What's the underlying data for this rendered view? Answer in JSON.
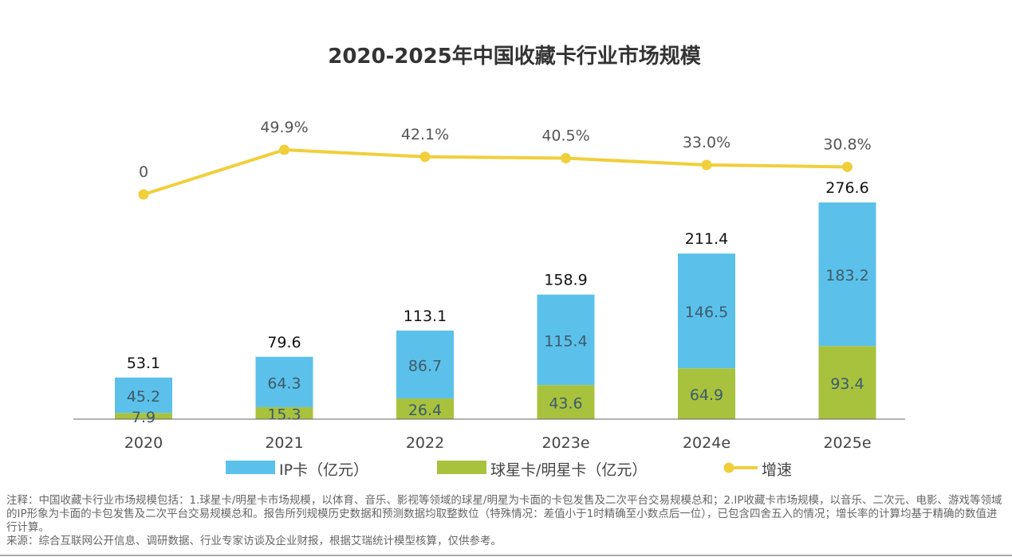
{
  "chart_data": {
    "type": "bar",
    "title": "2020-2025年中国收藏卡行业市场规模",
    "categories": [
      "2020",
      "2021",
      "2022",
      "2023e",
      "2024e",
      "2025e"
    ],
    "stacked": true,
    "series": [
      {
        "name": "球星卡/明星卡（亿元）",
        "values": [
          7.9,
          15.3,
          26.4,
          43.6,
          64.9,
          93.4
        ],
        "color": "#a8c23e"
      },
      {
        "name": "IP卡（亿元）",
        "values": [
          45.2,
          64.3,
          86.7,
          115.4,
          146.5,
          183.2
        ],
        "color": "#5bc1ea"
      }
    ],
    "totals": [
      "53.1",
      "79.6",
      "113.1",
      "158.9",
      "211.4",
      "276.6"
    ],
    "line_series": {
      "name": "增速",
      "values": [
        0,
        49.9,
        42.1,
        40.5,
        33.0,
        30.8
      ],
      "labels": [
        "0",
        "49.9%",
        "42.1%",
        "40.5%",
        "33.0%",
        "30.8%"
      ],
      "color": "#f0cf3a"
    },
    "legend": [
      "IP卡（亿元）",
      "球星卡/明星卡（亿元）",
      "增速"
    ],
    "legend_position": "bottom",
    "grid": false
  },
  "notes": {
    "note": "注释：中国收藏卡行业市场规模包括：1.球星卡/明星卡市场规模，以体育、音乐、影视等领域的球星/明星为卡面的卡包发售及二次平台交易规模总和；2.IP收藏卡市场规模，以音乐、二次元、电影、游戏等领域的IP形象为卡面的卡包发售及二次平台交易规模总和。报告所列规模历史数据和预测数据均取整数位（特殊情况：差值小于1时精确至小数点后一位），已包含四舍五入的情况；增长率的计算均基于精确的数值进行计算。",
    "source": "来源：综合互联网公开信息、调研数据、行业专家访谈及企业财报，根据艾瑞统计模型核算，仅供参考。"
  }
}
